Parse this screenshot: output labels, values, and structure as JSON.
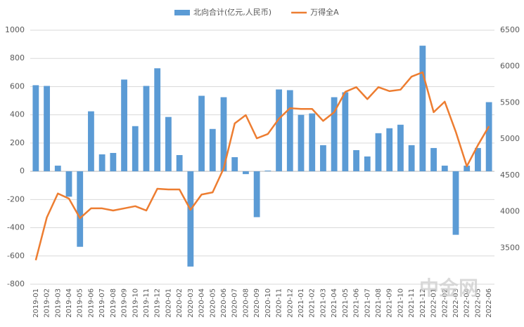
{
  "chart_data": {
    "type": "bar_line",
    "categories": [
      "2019-01",
      "2019-02",
      "2019-03",
      "2019-04",
      "2019-05",
      "2019-06",
      "2019-07",
      "2019-08",
      "2019-09",
      "2019-10",
      "2019-11",
      "2019-12",
      "2020-01",
      "2020-02",
      "2020-03",
      "2020-04",
      "2020-05",
      "2020-06",
      "2020-07",
      "2020-08",
      "2020-09",
      "2020-10",
      "2020-11",
      "2020-12",
      "2021-01",
      "2021-02",
      "2021-03",
      "2021-04",
      "2021-05",
      "2021-06",
      "2021-07",
      "2021-08",
      "2021-09",
      "2021-10",
      "2021-11",
      "2021-12",
      "2022-01",
      "2022-02",
      "2022-03",
      "2022-04",
      "2022-05",
      "2022-06"
    ],
    "series": [
      {
        "name": "北向合计(亿元,人民币)",
        "color": "#5b9bd5",
        "kind": "bar",
        "axis": "y",
        "values": [
          610,
          605,
          40,
          -180,
          -535,
          425,
          120,
          130,
          650,
          320,
          605,
          730,
          385,
          115,
          -675,
          535,
          300,
          525,
          100,
          -20,
          -325,
          5,
          580,
          575,
          400,
          410,
          185,
          525,
          560,
          150,
          105,
          270,
          305,
          330,
          185,
          890,
          165,
          40,
          -450,
          40,
          165,
          490
        ]
      },
      {
        "name": "万得全A",
        "color": "#ed7d31",
        "kind": "line",
        "axis": "y2",
        "values": [
          3330,
          3920,
          4250,
          4180,
          3910,
          4045,
          4045,
          4015,
          4045,
          4075,
          4015,
          4315,
          4305,
          4305,
          4025,
          4235,
          4265,
          4595,
          5215,
          5330,
          5010,
          5070,
          5280,
          5425,
          5415,
          5415,
          5250,
          5370,
          5650,
          5715,
          5550,
          5715,
          5660,
          5680,
          5860,
          5920,
          5370,
          5515,
          5100,
          4625,
          4915,
          5175
        ]
      }
    ],
    "ylim": [
      -800,
      1000
    ],
    "yticks": [
      -800,
      -600,
      -400,
      -200,
      0,
      200,
      400,
      600,
      800,
      1000
    ],
    "y2lim": [
      3000,
      6500
    ],
    "y2ticks": [
      3500,
      4000,
      4500,
      5000,
      5500,
      6000,
      6500
    ],
    "grid": true,
    "legend": "top",
    "watermark": "中金网"
  }
}
